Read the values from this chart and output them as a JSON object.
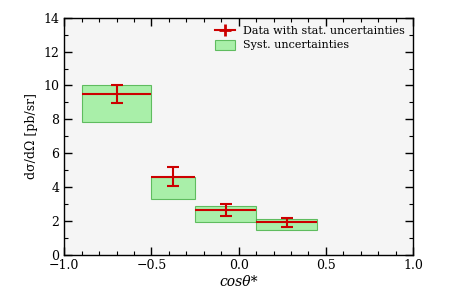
{
  "title": "",
  "xlabel": "cosθ*",
  "ylabel": "dσ/dΩ [pb/sr]",
  "xlim": [
    -1,
    1
  ],
  "ylim": [
    0,
    14
  ],
  "xticks": [
    -1,
    -0.5,
    0,
    0.5,
    1
  ],
  "yticks": [
    0,
    2,
    4,
    6,
    8,
    10,
    12,
    14
  ],
  "bin_edges": [
    -0.9,
    -0.5,
    -0.25,
    0.1,
    0.45
  ],
  "data_values": [
    9.5,
    4.6,
    2.65,
    1.9
  ],
  "data_stat_err": [
    0.55,
    0.55,
    0.35,
    0.25
  ],
  "syst_low": [
    7.85,
    3.3,
    1.9,
    1.45
  ],
  "syst_high": [
    10.0,
    4.6,
    2.9,
    2.1
  ],
  "data_color": "#cc0000",
  "syst_facecolor": "#90ee90",
  "syst_edge_color": "#3aaa3a",
  "plot_bg_color": "#f5f5f5",
  "fig_bg_color": "#ffffff"
}
